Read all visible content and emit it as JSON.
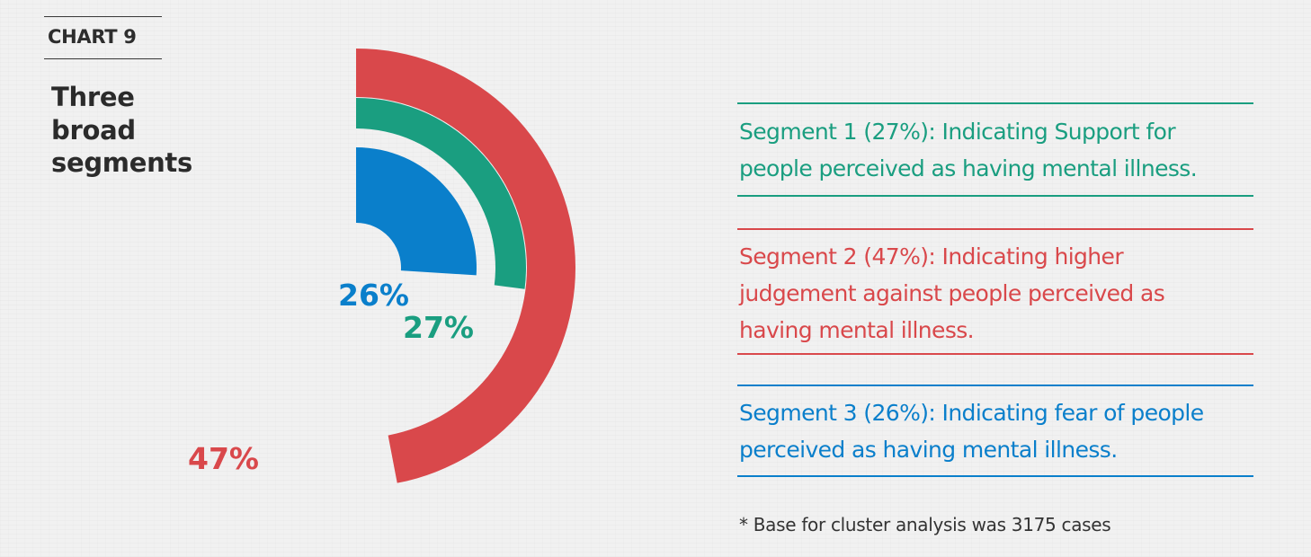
{
  "header": {
    "chart_number": "CHART 9",
    "title": "Three broad segments"
  },
  "colors": {
    "segment_1": "#1a9e80",
    "segment_2": "#d9484b",
    "segment_3": "#0a7fcb",
    "text_dark": "#2b2b2b"
  },
  "chart_data": {
    "type": "radial-bar",
    "title": "Three broad segments",
    "categories": [
      "Segment 1",
      "Segment 2",
      "Segment 3"
    ],
    "values": [
      27,
      47,
      26
    ],
    "value_labels": [
      "27%",
      "47%",
      "26%"
    ],
    "unit": "%",
    "series": [
      {
        "name": "Segment 2",
        "value": 47,
        "label": "47%",
        "color": "#d9484b",
        "ring": "outer"
      },
      {
        "name": "Segment 1",
        "value": 27,
        "label": "27%",
        "color": "#1a9e80",
        "ring": "middle"
      },
      {
        "name": "Segment 3",
        "value": 26,
        "label": "26%",
        "color": "#0a7fcb",
        "ring": "inner"
      }
    ],
    "legend_position": "right"
  },
  "legend": [
    {
      "lines": [
        "Segment 1 (27%): Indicating Support for",
        "people perceived as having mental illness."
      ],
      "color": "#1a9e80"
    },
    {
      "lines": [
        "Segment 2 (47%): Indicating higher",
        "judgement against  people perceived as",
        "having mental illness."
      ],
      "color": "#d9484b"
    },
    {
      "lines": [
        "Segment 3 (26%): Indicating fear of people",
        "perceived as having mental illness."
      ],
      "color": "#0a7fcb"
    }
  ],
  "footnote": "* Base for cluster analysis was 3175 cases"
}
